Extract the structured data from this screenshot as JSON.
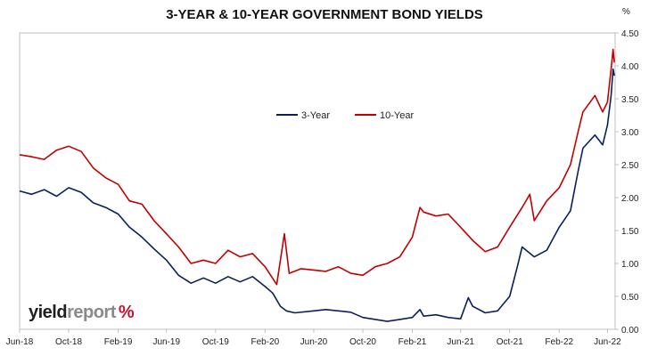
{
  "chart_data": {
    "type": "line",
    "title": "3-YEAR & 10-YEAR GOVERNMENT BOND YIELDS",
    "ylabel": "%",
    "ylim": [
      0,
      4.5
    ],
    "yticks": [
      "0.00",
      "0.50",
      "1.00",
      "1.50",
      "2.00",
      "2.50",
      "3.00",
      "3.50",
      "4.00",
      "4.50"
    ],
    "xticks": [
      {
        "label": "Jun-18",
        "x": "2018-06-01"
      },
      {
        "label": "Oct-18",
        "x": "2018-10-01"
      },
      {
        "label": "Feb-19",
        "x": "2019-02-01"
      },
      {
        "label": "Jun-19",
        "x": "2019-06-01"
      },
      {
        "label": "Oct-19",
        "x": "2019-10-01"
      },
      {
        "label": "Feb-20",
        "x": "2020-02-01"
      },
      {
        "label": "Jun-20",
        "x": "2020-06-01"
      },
      {
        "label": "Oct-20",
        "x": "2020-10-01"
      },
      {
        "label": "Feb-21",
        "x": "2021-02-01"
      },
      {
        "label": "Jun-21",
        "x": "2021-06-01"
      },
      {
        "label": "Oct-21",
        "x": "2021-10-01"
      },
      {
        "label": "Feb-22",
        "x": "2022-02-01"
      },
      {
        "label": "Jun-22",
        "x": "2022-06-01"
      }
    ],
    "xrange": [
      "2018-06-01",
      "2022-06-20"
    ],
    "grid": false,
    "legend": "top-center",
    "series": [
      {
        "name": "3-Year",
        "color": "#0a1f5c",
        "points": [
          [
            "2018-06-01",
            2.1
          ],
          [
            "2018-07-01",
            2.05
          ],
          [
            "2018-08-01",
            2.12
          ],
          [
            "2018-09-01",
            2.02
          ],
          [
            "2018-10-01",
            2.15
          ],
          [
            "2018-11-01",
            2.08
          ],
          [
            "2018-12-01",
            1.92
          ],
          [
            "2019-01-01",
            1.85
          ],
          [
            "2019-02-01",
            1.75
          ],
          [
            "2019-03-01",
            1.55
          ],
          [
            "2019-04-01",
            1.4
          ],
          [
            "2019-05-01",
            1.22
          ],
          [
            "2019-06-01",
            1.05
          ],
          [
            "2019-07-01",
            0.82
          ],
          [
            "2019-08-01",
            0.7
          ],
          [
            "2019-09-01",
            0.78
          ],
          [
            "2019-10-01",
            0.7
          ],
          [
            "2019-11-01",
            0.8
          ],
          [
            "2019-12-01",
            0.72
          ],
          [
            "2020-01-01",
            0.8
          ],
          [
            "2020-02-01",
            0.65
          ],
          [
            "2020-02-20",
            0.55
          ],
          [
            "2020-03-10",
            0.35
          ],
          [
            "2020-03-25",
            0.28
          ],
          [
            "2020-04-15",
            0.25
          ],
          [
            "2020-06-01",
            0.28
          ],
          [
            "2020-07-01",
            0.3
          ],
          [
            "2020-08-01",
            0.28
          ],
          [
            "2020-09-01",
            0.26
          ],
          [
            "2020-10-01",
            0.18
          ],
          [
            "2020-11-01",
            0.15
          ],
          [
            "2020-12-01",
            0.12
          ],
          [
            "2021-01-01",
            0.15
          ],
          [
            "2021-02-01",
            0.18
          ],
          [
            "2021-02-20",
            0.3
          ],
          [
            "2021-03-01",
            0.2
          ],
          [
            "2021-04-01",
            0.22
          ],
          [
            "2021-05-01",
            0.18
          ],
          [
            "2021-06-01",
            0.16
          ],
          [
            "2021-06-20",
            0.48
          ],
          [
            "2021-07-01",
            0.35
          ],
          [
            "2021-08-01",
            0.25
          ],
          [
            "2021-09-01",
            0.28
          ],
          [
            "2021-10-01",
            0.5
          ],
          [
            "2021-10-20",
            0.95
          ],
          [
            "2021-11-01",
            1.25
          ],
          [
            "2021-12-01",
            1.1
          ],
          [
            "2022-01-01",
            1.2
          ],
          [
            "2022-02-01",
            1.55
          ],
          [
            "2022-03-01",
            1.8
          ],
          [
            "2022-03-20",
            2.4
          ],
          [
            "2022-04-01",
            2.75
          ],
          [
            "2022-05-01",
            2.95
          ],
          [
            "2022-05-20",
            2.8
          ],
          [
            "2022-06-01",
            3.1
          ],
          [
            "2022-06-10",
            3.55
          ],
          [
            "2022-06-15",
            3.95
          ],
          [
            "2022-06-18",
            3.85
          ]
        ]
      },
      {
        "name": "10-Year",
        "color": "#c00000",
        "points": [
          [
            "2018-06-01",
            2.65
          ],
          [
            "2018-07-01",
            2.62
          ],
          [
            "2018-08-01",
            2.58
          ],
          [
            "2018-09-01",
            2.72
          ],
          [
            "2018-10-01",
            2.78
          ],
          [
            "2018-11-01",
            2.7
          ],
          [
            "2018-12-01",
            2.45
          ],
          [
            "2019-01-01",
            2.3
          ],
          [
            "2019-02-01",
            2.2
          ],
          [
            "2019-03-01",
            1.95
          ],
          [
            "2019-04-01",
            1.9
          ],
          [
            "2019-05-01",
            1.65
          ],
          [
            "2019-06-01",
            1.45
          ],
          [
            "2019-07-01",
            1.25
          ],
          [
            "2019-08-01",
            1.0
          ],
          [
            "2019-09-01",
            1.05
          ],
          [
            "2019-10-01",
            1.0
          ],
          [
            "2019-11-01",
            1.2
          ],
          [
            "2019-12-01",
            1.1
          ],
          [
            "2020-01-01",
            1.15
          ],
          [
            "2020-02-01",
            0.95
          ],
          [
            "2020-03-01",
            0.68
          ],
          [
            "2020-03-20",
            1.45
          ],
          [
            "2020-04-01",
            0.85
          ],
          [
            "2020-05-01",
            0.92
          ],
          [
            "2020-06-01",
            0.9
          ],
          [
            "2020-07-01",
            0.88
          ],
          [
            "2020-08-01",
            0.95
          ],
          [
            "2020-09-01",
            0.85
          ],
          [
            "2020-10-01",
            0.82
          ],
          [
            "2020-11-01",
            0.95
          ],
          [
            "2020-12-01",
            1.0
          ],
          [
            "2021-01-01",
            1.1
          ],
          [
            "2021-02-01",
            1.4
          ],
          [
            "2021-02-20",
            1.85
          ],
          [
            "2021-03-01",
            1.78
          ],
          [
            "2021-04-01",
            1.72
          ],
          [
            "2021-05-01",
            1.75
          ],
          [
            "2021-06-01",
            1.55
          ],
          [
            "2021-07-01",
            1.35
          ],
          [
            "2021-08-01",
            1.18
          ],
          [
            "2021-09-01",
            1.25
          ],
          [
            "2021-10-01",
            1.55
          ],
          [
            "2021-11-01",
            1.85
          ],
          [
            "2021-11-20",
            2.05
          ],
          [
            "2021-12-01",
            1.65
          ],
          [
            "2022-01-01",
            1.95
          ],
          [
            "2022-02-01",
            2.15
          ],
          [
            "2022-03-01",
            2.5
          ],
          [
            "2022-03-20",
            3.0
          ],
          [
            "2022-04-01",
            3.3
          ],
          [
            "2022-05-01",
            3.55
          ],
          [
            "2022-05-20",
            3.3
          ],
          [
            "2022-06-01",
            3.45
          ],
          [
            "2022-06-10",
            3.95
          ],
          [
            "2022-06-15",
            4.25
          ],
          [
            "2022-06-18",
            4.05
          ]
        ]
      }
    ]
  },
  "branding": {
    "logo_word1": "yield",
    "logo_word2": "report",
    "logo_symbol": "%"
  }
}
